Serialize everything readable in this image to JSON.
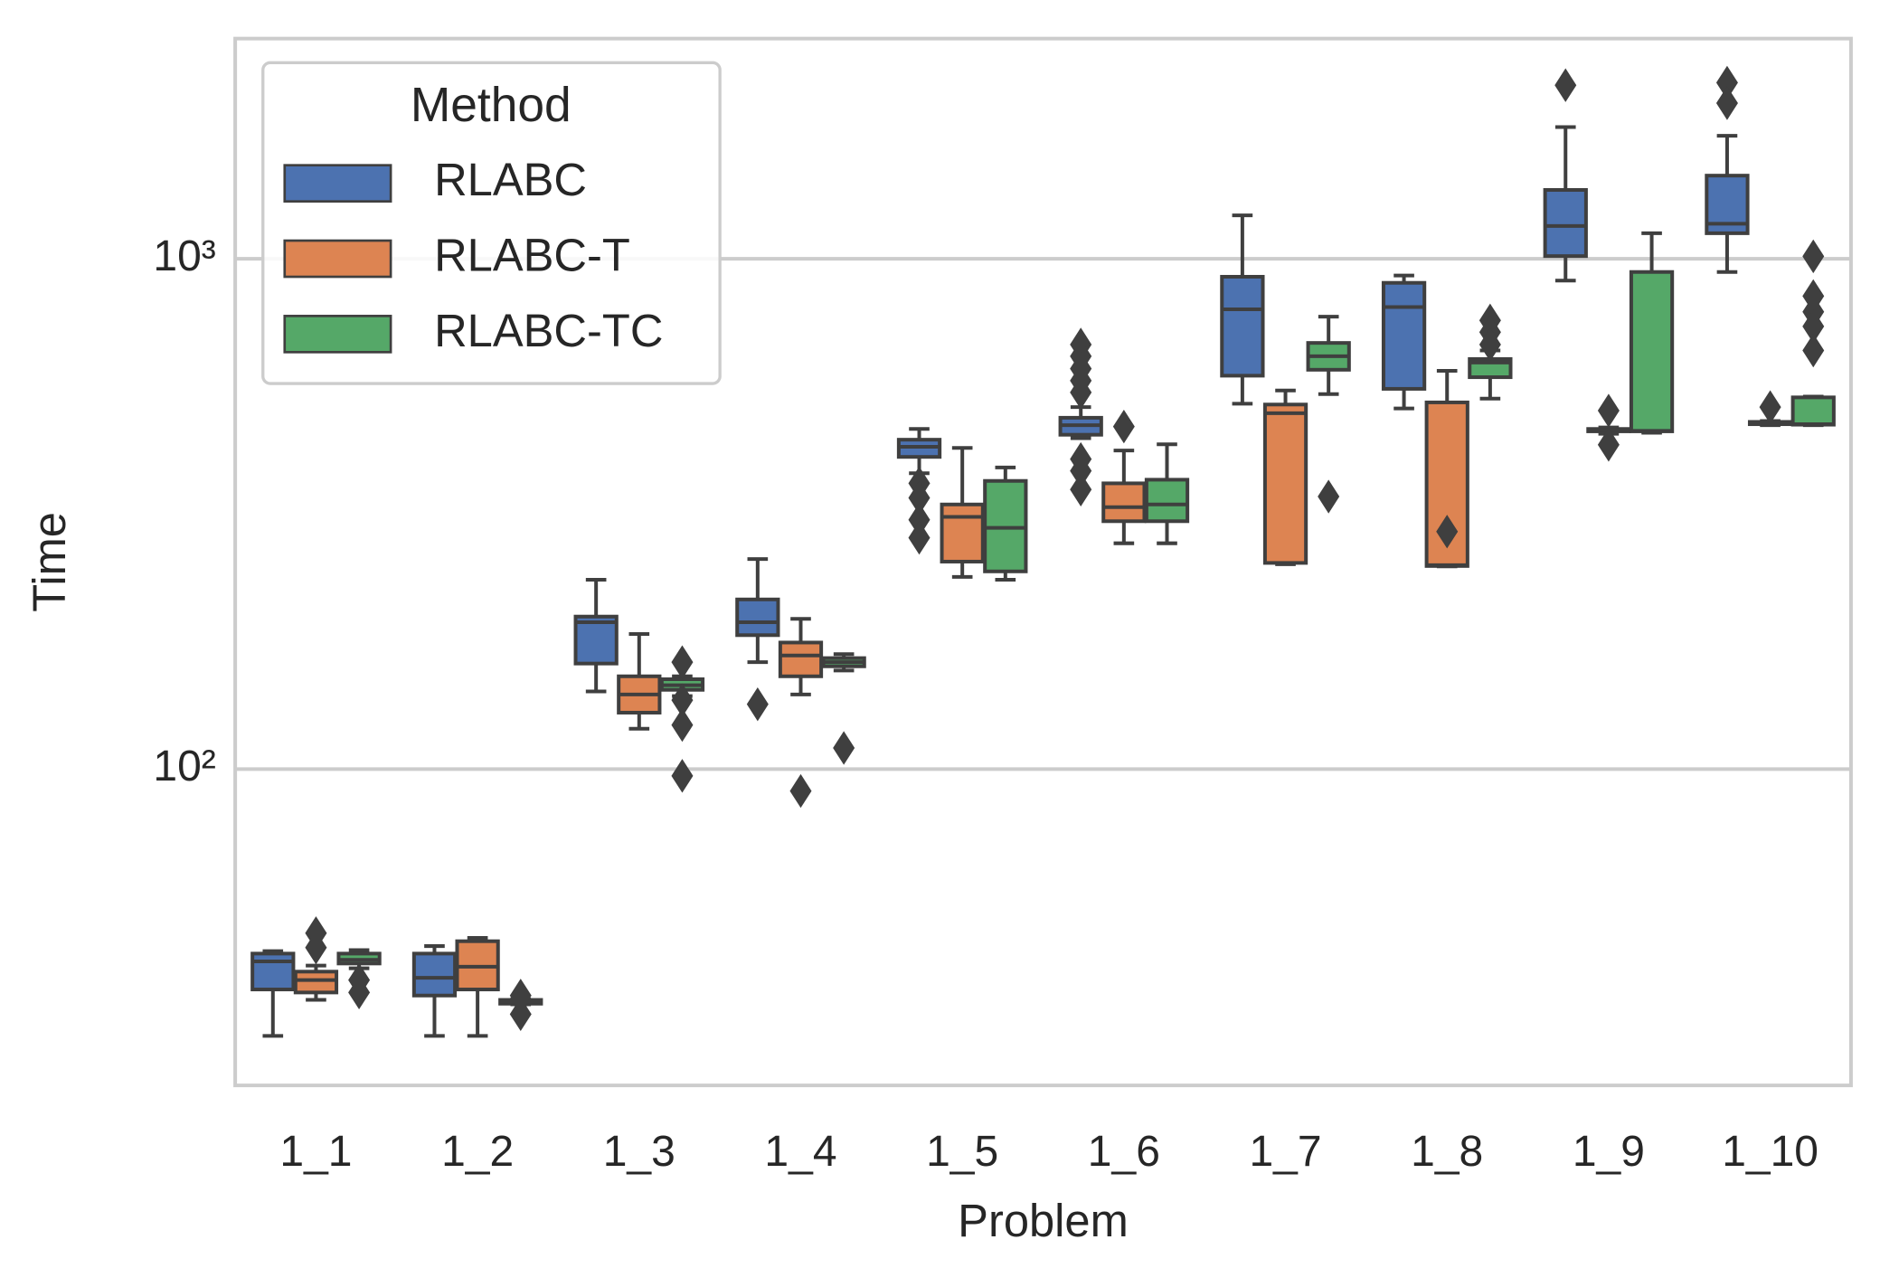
{
  "chart_data": {
    "type": "box",
    "xlabel": "Problem",
    "ylabel": "Time",
    "categories": [
      "1_1",
      "1_2",
      "1_3",
      "1_4",
      "1_5",
      "1_6",
      "1_7",
      "1_8",
      "1_9",
      "1_10"
    ],
    "ylim": [
      24,
      2700
    ],
    "yscale": "log",
    "grid": true,
    "yticks": [
      {
        "value": 100,
        "label": "10²"
      },
      {
        "value": 1000,
        "label": "10³"
      }
    ],
    "legend": {
      "title": "Method",
      "loc": "upper left"
    },
    "series": [
      {
        "name": "RLABC",
        "color": "#4c72b0",
        "boxes": [
          {
            "whislo": 30,
            "q1": 37,
            "med": 42,
            "q3": 43.5,
            "whishi": 44,
            "fliers": []
          },
          {
            "whislo": 30,
            "q1": 36,
            "med": 39,
            "q3": 43.5,
            "whishi": 45,
            "fliers": []
          },
          {
            "whislo": 142,
            "q1": 161,
            "med": 194,
            "q3": 199,
            "whishi": 235,
            "fliers": []
          },
          {
            "whislo": 162,
            "q1": 183,
            "med": 194,
            "q3": 215,
            "whishi": 258,
            "fliers": [
              134
            ]
          },
          {
            "whislo": 380,
            "q1": 409,
            "med": 428,
            "q3": 442,
            "whishi": 464,
            "fliers": [
              363,
              340,
              308,
              284
            ]
          },
          {
            "whislo": 445,
            "q1": 452,
            "med": 472,
            "q3": 488,
            "whishi": 512,
            "fliers": [
              679,
              644,
              609,
              577,
              547,
              405,
              384,
              353
            ]
          },
          {
            "whislo": 520,
            "q1": 590,
            "med": 796,
            "q3": 922,
            "whishi": 1216,
            "fliers": []
          },
          {
            "whislo": 509,
            "q1": 556,
            "med": 804,
            "q3": 897,
            "whishi": 927,
            "fliers": []
          },
          {
            "whislo": 906,
            "q1": 1012,
            "med": 1159,
            "q3": 1364,
            "whishi": 1811,
            "fliers": [
              2188
            ]
          },
          {
            "whislo": 942,
            "q1": 1122,
            "med": 1171,
            "q3": 1455,
            "whishi": 1742,
            "fliers": [
              2213,
              2018
            ]
          }
        ]
      },
      {
        "name": "RLABC-T",
        "color": "#dd8452",
        "boxes": [
          {
            "whislo": 35.3,
            "q1": 36.5,
            "med": 38.6,
            "q3": 40.1,
            "whishi": 41.2,
            "fliers": [
              47.7,
              44.7
            ]
          },
          {
            "whislo": 30,
            "q1": 37,
            "med": 41,
            "q3": 46,
            "whishi": 46.7,
            "fliers": []
          },
          {
            "whislo": 120,
            "q1": 129,
            "med": 140,
            "q3": 152,
            "whishi": 184,
            "fliers": []
          },
          {
            "whislo": 140,
            "q1": 152,
            "med": 167,
            "q3": 177,
            "whishi": 197,
            "fliers": [
              90.6
            ]
          },
          {
            "whislo": 238,
            "q1": 255,
            "med": 312,
            "q3": 330,
            "whishi": 426,
            "fliers": []
          },
          {
            "whislo": 277,
            "q1": 306,
            "med": 326,
            "q3": 363,
            "whishi": 421,
            "fliers": [
              469
            ]
          },
          {
            "whislo": 252,
            "q1": 253.5,
            "med": 498,
            "q3": 518,
            "whishi": 552,
            "fliers": []
          },
          {
            "whislo": 249.5,
            "q1": 250,
            "med": 251,
            "q3": 523,
            "whishi": 603,
            "fliers": [
              292
            ]
          },
          {
            "whislo": 454,
            "q1": 459,
            "med": 462,
            "q3": 464,
            "whishi": 467,
            "fliers": [
              504,
              432
            ]
          },
          {
            "whislo": 472,
            "q1": 474,
            "med": 477,
            "q3": 479,
            "whishi": 481,
            "fliers": [
              512
            ]
          }
        ]
      },
      {
        "name": "RLABC-TC",
        "color": "#55a868",
        "boxes": [
          {
            "whislo": 40.7,
            "q1": 41.6,
            "med": 42.3,
            "q3": 43.5,
            "whishi": 44.2,
            "fliers": [
              38.6,
              36.5
            ]
          },
          {
            "whislo": 34.6,
            "q1": 34.7,
            "med": 35,
            "q3": 35.3,
            "whishi": 35.4,
            "fliers": [
              36,
              33.1
            ]
          },
          {
            "whislo": 139,
            "q1": 143,
            "med": 146,
            "q3": 150,
            "whishi": 152,
            "fliers": [
              162,
              136.5,
              122,
              97
            ]
          },
          {
            "whislo": 156,
            "q1": 159,
            "med": 162,
            "q3": 165,
            "whishi": 168,
            "fliers": [
              110
            ]
          },
          {
            "whislo": 235,
            "q1": 244,
            "med": 297,
            "q3": 367,
            "whishi": 390,
            "fliers": []
          },
          {
            "whislo": 277,
            "q1": 306,
            "med": 330,
            "q3": 369,
            "whishi": 433,
            "fliers": []
          },
          {
            "whislo": 543,
            "q1": 606,
            "med": 644,
            "q3": 684,
            "whishi": 770,
            "fliers": [
              342
            ]
          },
          {
            "whislo": 532,
            "q1": 586,
            "med": 626,
            "q3": 636,
            "whishi": 661,
            "fliers": [
              757,
              718,
              679
            ]
          },
          {
            "whislo": 456,
            "q1": 459,
            "med": 460,
            "q3": 942,
            "whishi": 1122,
            "fliers": []
          },
          {
            "whislo": 472,
            "q1": 473,
            "med": 474,
            "q3": 535,
            "whishi": 537,
            "fliers": [
              1011,
              845,
              787,
              737,
              661
            ]
          }
        ]
      }
    ]
  }
}
